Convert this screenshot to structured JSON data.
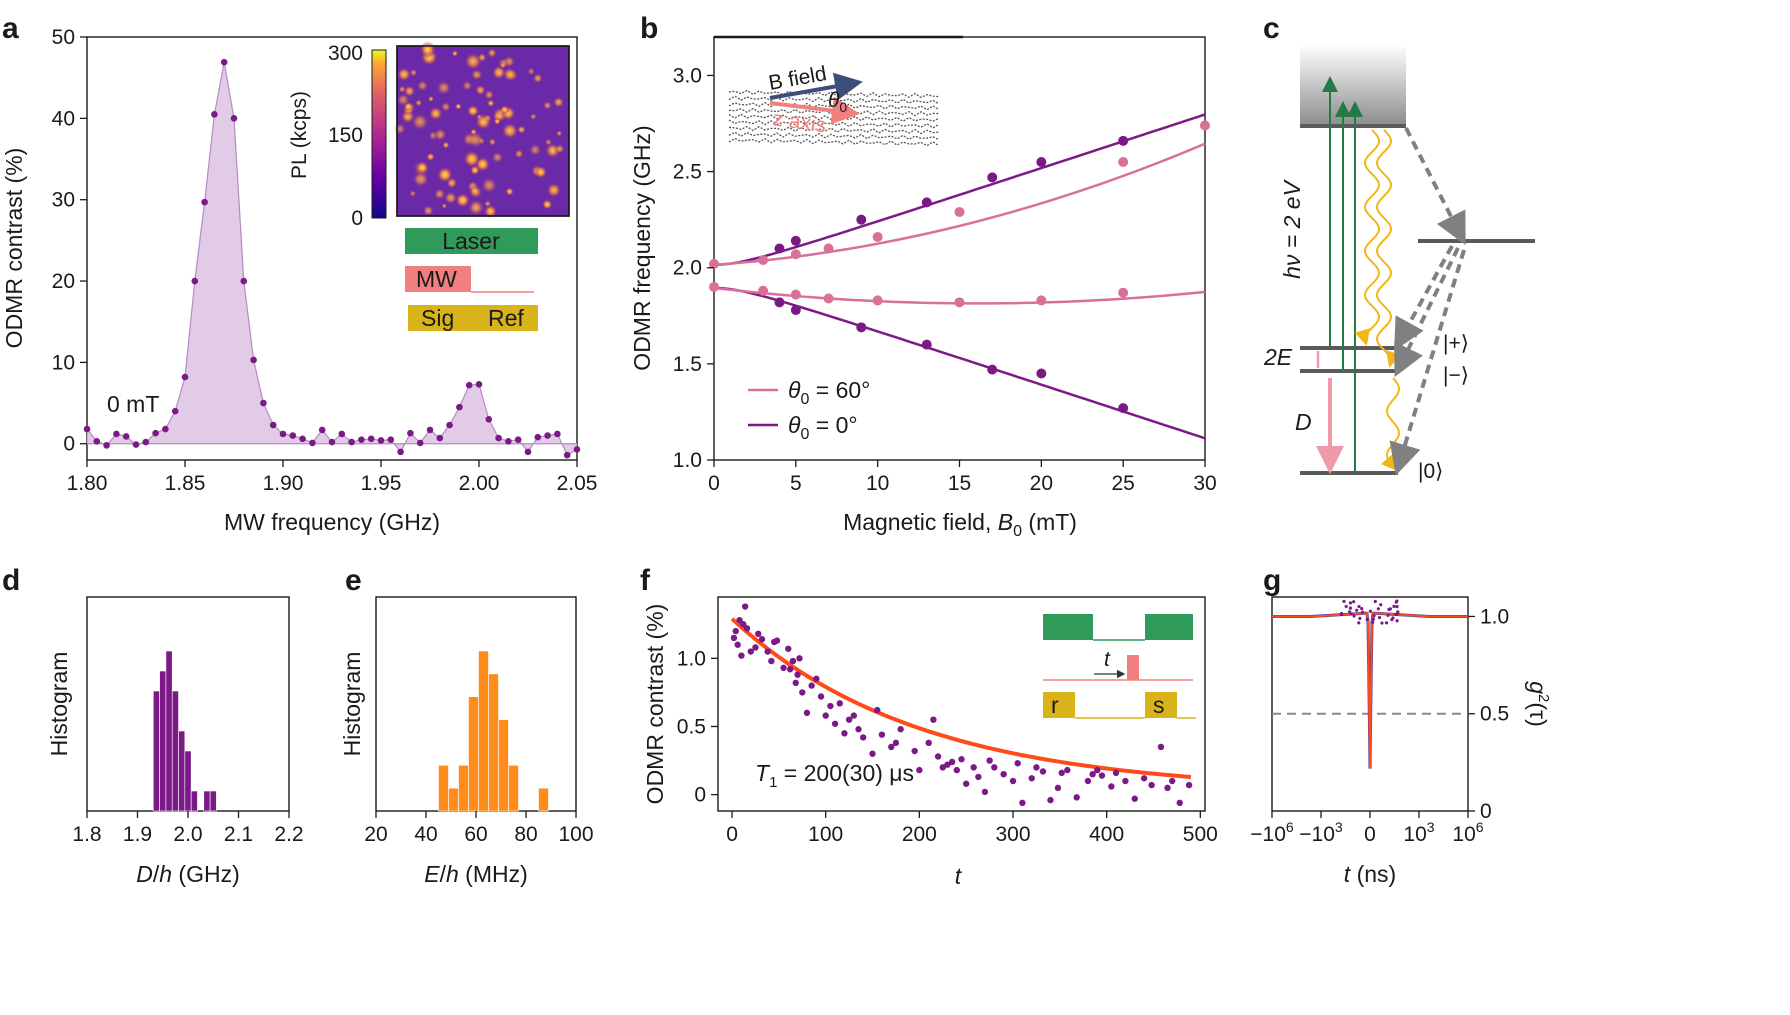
{
  "panels": [
    {
      "id": "a",
      "label": "a"
    },
    {
      "id": "b",
      "label": "b"
    },
    {
      "id": "c",
      "label": "c"
    },
    {
      "id": "d",
      "label": "d"
    },
    {
      "id": "e",
      "label": "e"
    },
    {
      "id": "f",
      "label": "f"
    },
    {
      "id": "g",
      "label": "g"
    }
  ],
  "colors": {
    "purple": "#7b1a86",
    "pink": "#d9709a",
    "lilac": "#ddc2e2",
    "green": "#2f9a5a",
    "salmon": "#f08080",
    "mustard": "#d9b31a",
    "orange": "#ff8c1a",
    "red": "#ff4a1a",
    "gold": "#f2b616",
    "gray": "#808080",
    "darkgreen": "#237a46"
  },
  "chart_data": [
    {
      "panel": "a",
      "type": "area",
      "xlabel": "MW frequency (GHz)",
      "ylabel": "ODMR contrast (%)",
      "xlim": [
        1.8,
        2.05
      ],
      "ylim": [
        -2,
        50
      ],
      "xticks": [
        1.8,
        1.85,
        1.9,
        1.95,
        2.0,
        2.05
      ],
      "xtick_labels": [
        "1.80",
        "1.85",
        "1.90",
        "1.95",
        "2.00",
        "2.05"
      ],
      "yticks": [
        0,
        10,
        20,
        30,
        40,
        50
      ],
      "ytick_labels": [
        "0",
        "10",
        "20",
        "30",
        "40",
        "50"
      ],
      "annotation": "0 mT",
      "points": [
        [
          1.8,
          1.8
        ],
        [
          1.805,
          0.3
        ],
        [
          1.81,
          -0.2
        ],
        [
          1.815,
          1.2
        ],
        [
          1.82,
          0.9
        ],
        [
          1.825,
          -0.1
        ],
        [
          1.83,
          0.2
        ],
        [
          1.835,
          1.3
        ],
        [
          1.84,
          1.8
        ],
        [
          1.845,
          4.0
        ],
        [
          1.85,
          8.2
        ],
        [
          1.855,
          20
        ],
        [
          1.86,
          29.7
        ],
        [
          1.865,
          40.5
        ],
        [
          1.87,
          46.9
        ],
        [
          1.875,
          40.0
        ],
        [
          1.88,
          20.0
        ],
        [
          1.885,
          10.3
        ],
        [
          1.89,
          5.0
        ],
        [
          1.895,
          2.3
        ],
        [
          1.9,
          1.2
        ],
        [
          1.905,
          1.0
        ],
        [
          1.91,
          0.6
        ],
        [
          1.915,
          0.1
        ],
        [
          1.92,
          1.7
        ],
        [
          1.925,
          0.2
        ],
        [
          1.93,
          1.2
        ],
        [
          1.935,
          0.2
        ],
        [
          1.94,
          0.5
        ],
        [
          1.945,
          0.6
        ],
        [
          1.95,
          0.4
        ],
        [
          1.955,
          0.5
        ],
        [
          1.96,
          -1.0
        ],
        [
          1.965,
          1.3
        ],
        [
          1.97,
          0.1
        ],
        [
          1.975,
          1.7
        ],
        [
          1.98,
          0.7
        ],
        [
          1.985,
          2.3
        ],
        [
          1.99,
          4.5
        ],
        [
          1.995,
          7.2
        ],
        [
          2.0,
          7.3
        ],
        [
          2.005,
          3.0
        ],
        [
          2.01,
          0.7
        ],
        [
          2.015,
          0.3
        ],
        [
          2.02,
          0.5
        ],
        [
          2.025,
          -1.0
        ],
        [
          2.03,
          0.8
        ],
        [
          2.035,
          1.0
        ],
        [
          2.04,
          1.2
        ],
        [
          2.045,
          -1.4
        ],
        [
          2.05,
          -0.7
        ]
      ],
      "inset": {
        "colorbar_label": "PL (kcps)",
        "colorbar_ticks": [
          "300",
          "150",
          "0"
        ],
        "colorbar_range": [
          0,
          300
        ]
      },
      "pulse_sequence": {
        "laser": "Laser",
        "mw": "MW",
        "sig": "Sig",
        "ref": "Ref"
      }
    },
    {
      "panel": "b",
      "type": "line",
      "xlabel": "Magnetic field, B0 (mT)",
      "ylabel": "ODMR frequency (GHz)",
      "xlim": [
        0,
        30
      ],
      "ylim": [
        1.0,
        3.2
      ],
      "xticks": [
        0,
        5,
        10,
        15,
        20,
        25,
        30
      ],
      "xtick_labels": [
        "0",
        "5",
        "10",
        "15",
        "20",
        "25",
        "30"
      ],
      "yticks": [
        1.0,
        1.5,
        2.0,
        2.5,
        3.0
      ],
      "ytick_labels": [
        "1.0",
        "1.5",
        "2.0",
        "2.5",
        "3.0"
      ],
      "inset_labels": {
        "bfield": "B field",
        "theta": "θ0",
        "zaxis": "z axis"
      },
      "series": [
        {
          "name": "θ0 = 60°",
          "legend_symbol": "θ",
          "legend_sub": "0",
          "legend_rest": " = 60°",
          "color": "#d9709a",
          "upper_points": [
            [
              0,
              2.02
            ],
            [
              3,
              2.04
            ],
            [
              5,
              2.07
            ],
            [
              7,
              2.1
            ],
            [
              10,
              2.16
            ],
            [
              15,
              2.29
            ],
            [
              25,
              2.55
            ],
            [
              30,
              2.74
            ]
          ],
          "lower_points": [
            [
              0,
              1.9
            ],
            [
              3,
              1.88
            ],
            [
              5,
              1.86
            ],
            [
              7,
              1.84
            ],
            [
              10,
              1.83
            ],
            [
              15,
              1.82
            ],
            [
              20,
              1.83
            ],
            [
              25,
              1.87
            ]
          ]
        },
        {
          "name": "θ0 = 0°",
          "legend_symbol": "θ",
          "legend_sub": "0",
          "legend_rest": " = 0°",
          "color": "#7b1a86",
          "upper_points": [
            [
              4,
              2.1
            ],
            [
              5,
              2.14
            ],
            [
              9,
              2.25
            ],
            [
              13,
              2.34
            ],
            [
              17,
              2.47
            ],
            [
              20,
              2.55
            ],
            [
              25,
              2.66
            ]
          ],
          "lower_points": [
            [
              4,
              1.82
            ],
            [
              5,
              1.78
            ],
            [
              9,
              1.69
            ],
            [
              13,
              1.6
            ],
            [
              17,
              1.47
            ],
            [
              20,
              1.45
            ],
            [
              25,
              1.27
            ]
          ]
        }
      ]
    },
    {
      "panel": "c",
      "type": "diagram",
      "energy_label_main": "hν = 2 eV",
      "labels": {
        "twoE": "2E",
        "D": "D",
        "plus": "|+⟩",
        "minus": "|−⟩",
        "zero": "|0⟩"
      }
    },
    {
      "panel": "d",
      "type": "bar",
      "xlabel": "D/h (GHz)",
      "ylabel": "Histogram",
      "xlim": [
        1.8,
        2.2
      ],
      "xticks": [
        1.8,
        1.9,
        2.0,
        2.1,
        2.2
      ],
      "xtick_labels": [
        "1.8",
        "1.9",
        "2.0",
        "2.1",
        "2.2"
      ],
      "bin_width": 0.0125,
      "bins": [
        [
          1.9375,
          6
        ],
        [
          1.95,
          7
        ],
        [
          1.9625,
          8
        ],
        [
          1.975,
          6
        ],
        [
          1.9875,
          4
        ],
        [
          2.0,
          3
        ],
        [
          2.0125,
          1
        ],
        [
          2.0375,
          1
        ],
        [
          2.05,
          1
        ]
      ]
    },
    {
      "panel": "e",
      "type": "bar",
      "xlabel": "E/h (MHz)",
      "ylabel": "Histogram",
      "xlim": [
        20,
        100
      ],
      "xticks": [
        20,
        40,
        60,
        80,
        100
      ],
      "xtick_labels": [
        "20",
        "40",
        "60",
        "80",
        "100"
      ],
      "bin_width": 4,
      "bins": [
        [
          47,
          2
        ],
        [
          51,
          1
        ],
        [
          55,
          2
        ],
        [
          59,
          5
        ],
        [
          63,
          7
        ],
        [
          67,
          6
        ],
        [
          71,
          4
        ],
        [
          75,
          2
        ],
        [
          87,
          1
        ]
      ]
    },
    {
      "panel": "f",
      "type": "scatter",
      "xlabel": "t",
      "ylabel": "ODMR contrast (%)",
      "xlim": [
        -15,
        505
      ],
      "ylim": [
        -0.12,
        1.45
      ],
      "xticks": [
        0,
        100,
        200,
        300,
        400,
        500
      ],
      "xtick_labels": [
        "0",
        "100",
        "200",
        "300",
        "400",
        "500"
      ],
      "yticks": [
        0,
        0.5,
        1.0
      ],
      "ytick_labels": [
        "0",
        "0.5",
        "1.0"
      ],
      "annotation": "T1 = 200(30) μs",
      "annotation_T": "T",
      "annotation_sub": "1",
      "annotation_rest": " = 200(30) μs",
      "fit": {
        "A": 1.27,
        "tau": 200,
        "offset": 0.02
      },
      "pulse_sequence": {
        "t": "t",
        "r": "r",
        "s": "s"
      },
      "points": [
        [
          2,
          1.15
        ],
        [
          4,
          1.2
        ],
        [
          6,
          1.1
        ],
        [
          8,
          1.28
        ],
        [
          10,
          1.02
        ],
        [
          12,
          1.25
        ],
        [
          14,
          1.38
        ],
        [
          16,
          1.22
        ],
        [
          20,
          1.05
        ],
        [
          25,
          1.08
        ],
        [
          28,
          1.18
        ],
        [
          32,
          1.14
        ],
        [
          38,
          1.05
        ],
        [
          42,
          0.98
        ],
        [
          45,
          1.12
        ],
        [
          48,
          1.13
        ],
        [
          55,
          0.93
        ],
        [
          60,
          1.07
        ],
        [
          62,
          0.92
        ],
        [
          65,
          0.98
        ],
        [
          68,
          0.82
        ],
        [
          70,
          0.88
        ],
        [
          72,
          1.0
        ],
        [
          75,
          0.75
        ],
        [
          80,
          0.6
        ],
        [
          85,
          0.8
        ],
        [
          90,
          0.85
        ],
        [
          95,
          0.72
        ],
        [
          100,
          0.58
        ],
        [
          105,
          0.65
        ],
        [
          110,
          0.52
        ],
        [
          115,
          0.67
        ],
        [
          120,
          0.45
        ],
        [
          125,
          0.55
        ],
        [
          130,
          0.58
        ],
        [
          135,
          0.48
        ],
        [
          140,
          0.42
        ],
        [
          150,
          0.3
        ],
        [
          155,
          0.62
        ],
        [
          160,
          0.44
        ],
        [
          170,
          0.35
        ],
        [
          175,
          0.38
        ],
        [
          180,
          0.48
        ],
        [
          195,
          0.32
        ],
        [
          200,
          0.18
        ],
        [
          210,
          0.38
        ],
        [
          215,
          0.55
        ],
        [
          220,
          0.28
        ],
        [
          225,
          0.2
        ],
        [
          230,
          0.22
        ],
        [
          235,
          0.24
        ],
        [
          240,
          0.18
        ],
        [
          245,
          0.26
        ],
        [
          250,
          0.08
        ],
        [
          258,
          0.2
        ],
        [
          263,
          0.13
        ],
        [
          270,
          0.02
        ],
        [
          275,
          0.25
        ],
        [
          280,
          0.2
        ],
        [
          290,
          0.15
        ],
        [
          300,
          0.1
        ],
        [
          305,
          0.23
        ],
        [
          310,
          -0.06
        ],
        [
          320,
          0.12
        ],
        [
          325,
          0.2
        ],
        [
          332,
          0.17
        ],
        [
          340,
          -0.04
        ],
        [
          348,
          0.05
        ],
        [
          352,
          0.16
        ],
        [
          358,
          0.18
        ],
        [
          368,
          -0.02
        ],
        [
          380,
          0.1
        ],
        [
          385,
          0.15
        ],
        [
          390,
          0.18
        ],
        [
          395,
          0.14
        ],
        [
          405,
          0.06
        ],
        [
          410,
          0.16
        ],
        [
          420,
          0.1
        ],
        [
          430,
          -0.03
        ],
        [
          440,
          0.12
        ],
        [
          448,
          0.07
        ],
        [
          458,
          0.35
        ],
        [
          465,
          0.05
        ],
        [
          470,
          0.1
        ],
        [
          478,
          -0.06
        ],
        [
          488,
          0.07
        ]
      ]
    },
    {
      "panel": "g",
      "type": "line",
      "xlabel": "t (ns)",
      "ylabel": "g2(τ)",
      "ylabel_g": "g",
      "ylabel_sup": "2",
      "ylabel_rest": "(τ)",
      "xscale": "symlog",
      "xticks": [
        "−10",
        "−10",
        "0",
        "10",
        "10"
      ],
      "xtick_sups": [
        "6",
        "3",
        "",
        "3",
        "6"
      ],
      "yticks": [
        0,
        0.5,
        1.0
      ],
      "ytick_labels": [
        "0",
        "0.5",
        "1.0"
      ],
      "ylim": [
        0,
        1.1
      ],
      "dashed_level": 0.5,
      "min_value": 0.2
    }
  ]
}
